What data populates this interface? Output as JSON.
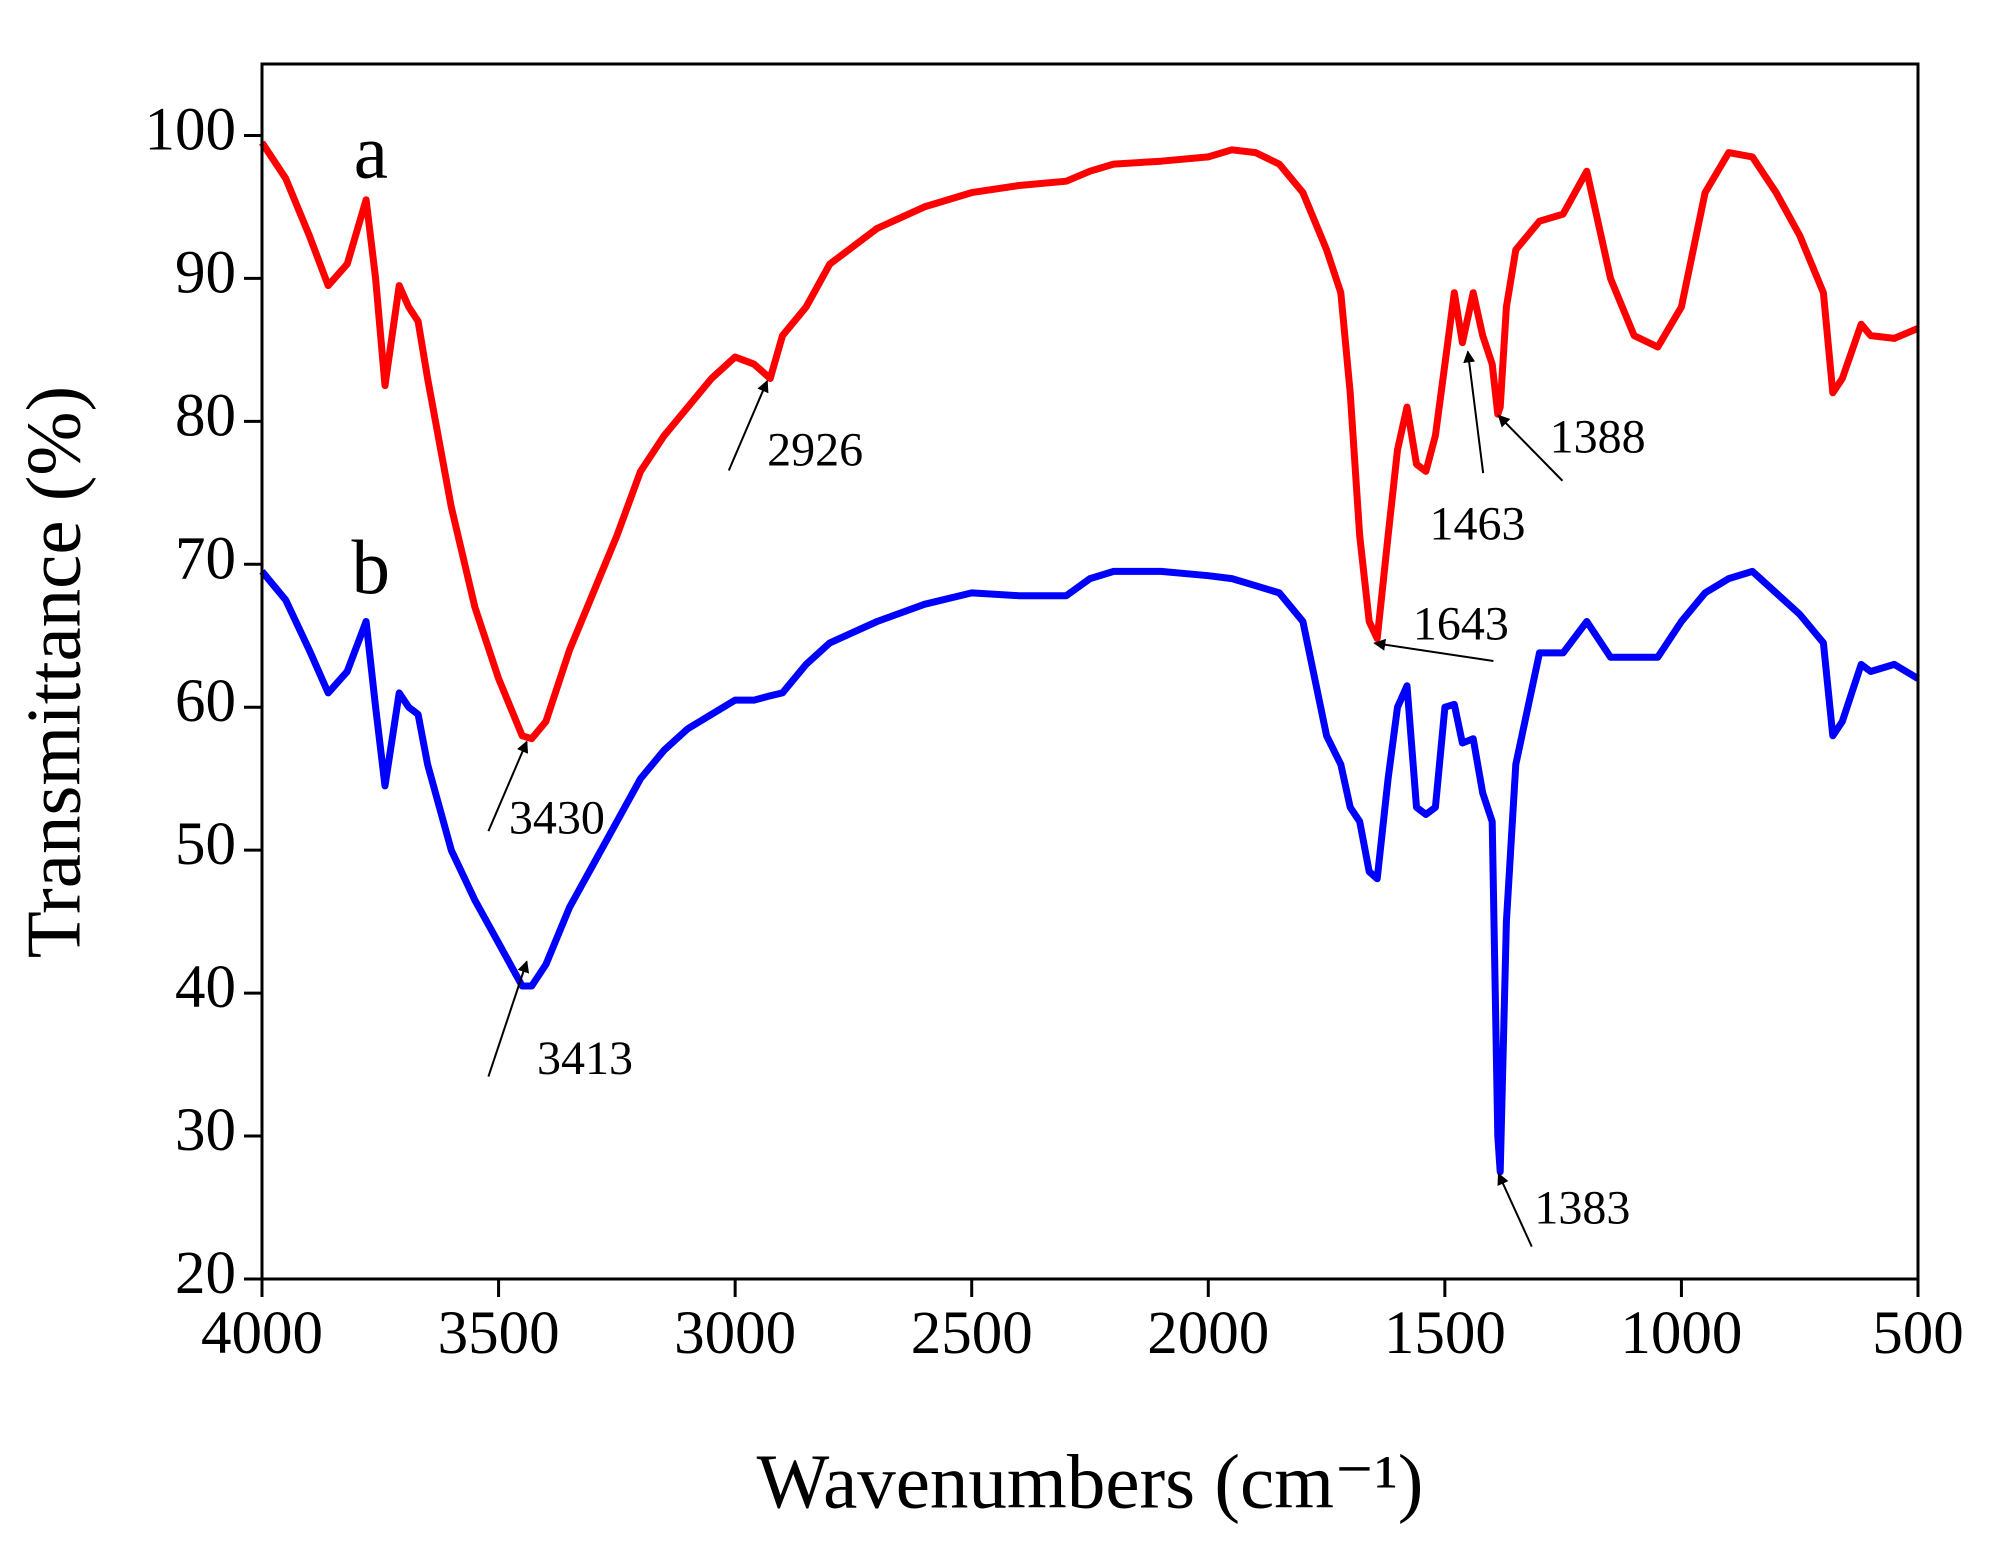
{
  "chart_data": {
    "type": "line",
    "x_label": "Wavenumbers (cm⁻¹)",
    "y_label": "Transmittance (%)",
    "x": [
      4000,
      3950,
      3900,
      3860,
      3820,
      3780,
      3760,
      3740,
      3710,
      3690,
      3670,
      3650,
      3600,
      3550,
      3500,
      3450,
      3430,
      3400,
      3350,
      3300,
      3250,
      3200,
      3150,
      3100,
      3050,
      3000,
      2960,
      2926,
      2900,
      2850,
      2800,
      2700,
      2600,
      2500,
      2400,
      2300,
      2250,
      2200,
      2100,
      2000,
      1950,
      1900,
      1850,
      1800,
      1750,
      1720,
      1700,
      1680,
      1660,
      1643,
      1620,
      1600,
      1580,
      1560,
      1540,
      1520,
      1500,
      1480,
      1463,
      1440,
      1420,
      1400,
      1388,
      1383,
      1370,
      1350,
      1300,
      1250,
      1200,
      1150,
      1100,
      1050,
      1000,
      950,
      900,
      850,
      800,
      750,
      700,
      680,
      660,
      620,
      600,
      550,
      500
    ],
    "series": [
      {
        "name": "a",
        "color": "#ff0000",
        "values": [
          99.5,
          97,
          93,
          89.5,
          91,
          95.5,
          90,
          82.5,
          89.5,
          88,
          87,
          83,
          74,
          67,
          62,
          58,
          57.8,
          59,
          64,
          68,
          72,
          76.5,
          79,
          81,
          83,
          84.5,
          84,
          83,
          86,
          88,
          91,
          93.5,
          95,
          96,
          96.5,
          96.8,
          97.5,
          98,
          98.2,
          98.5,
          99,
          98.8,
          98,
          96,
          92,
          89,
          82,
          72,
          66,
          64.8,
          72,
          78,
          81,
          77,
          76.5,
          79,
          84,
          89,
          85.5,
          89,
          86,
          84,
          80.5,
          81,
          88,
          92,
          94,
          94.5,
          97.5,
          90,
          86,
          85.2,
          88,
          96,
          98.8,
          98.5,
          96,
          93,
          89,
          82,
          83,
          86.8,
          86,
          85.8,
          86.5
        ]
      },
      {
        "name": "b",
        "color": "#0000ff",
        "values": [
          69.5,
          67.5,
          64,
          61,
          62.5,
          66,
          60,
          54.5,
          61,
          60,
          59.5,
          56,
          50,
          46.5,
          43.5,
          40.5,
          40.5,
          42,
          46,
          49,
          52,
          55,
          57,
          58.5,
          59.5,
          60.5,
          60.5,
          60.8,
          61,
          63,
          64.5,
          66,
          67.2,
          68,
          67.8,
          67.8,
          69,
          69.5,
          69.5,
          69.2,
          69,
          68.5,
          68,
          66,
          58,
          56,
          53,
          52,
          48.5,
          48,
          55,
          60,
          61.5,
          53,
          52.5,
          53,
          60,
          60.2,
          57.5,
          57.8,
          54,
          52,
          30,
          27.5,
          45,
          56,
          63.8,
          63.8,
          66,
          63.5,
          63.5,
          63.5,
          66,
          68,
          69,
          69.5,
          68,
          66.5,
          64.5,
          58,
          59,
          63,
          62.5,
          63,
          62
        ]
      }
    ],
    "annotations": [
      "3430",
      "3413",
      "2926",
      "1643",
      "1463",
      "1388",
      "1383"
    ],
    "xlim": [
      4000,
      500
    ],
    "xticks": [
      4000,
      3500,
      3000,
      2500,
      2000,
      1500,
      1000,
      500
    ],
    "ylim": [
      20,
      105
    ],
    "yticks": [
      20,
      30,
      40,
      50,
      60,
      70,
      80,
      90,
      100
    ],
    "grid": false
  }
}
